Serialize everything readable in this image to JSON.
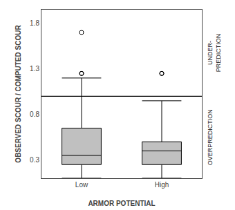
{
  "chart_data": {
    "type": "box",
    "xlabel": "ARMOR POTENTIAL",
    "ylabel": "OBSERVED SCOUR / COMPUTED SCOUR",
    "categories": [
      "Low",
      "High"
    ],
    "q1": [
      0.25,
      0.25
    ],
    "median": [
      0.35,
      0.4
    ],
    "q3": [
      0.65,
      0.5
    ],
    "whisker_low": [
      0.1,
      0.1
    ],
    "whisker_high": [
      1.2,
      0.95
    ],
    "outliers": [
      [
        1.25,
        1.25,
        1.7
      ],
      [
        1.25,
        1.25
      ]
    ],
    "ylim": [
      0.1,
      1.95
    ],
    "yticks": [
      0.3,
      0.8,
      1.3,
      1.8
    ],
    "reference_line": 1.0,
    "annotations": [
      "UNDER-\nPREDICTION",
      "OVERPREDICTION"
    ],
    "color": "#c0c0c0",
    "marker": "circle-open",
    "grid": false
  }
}
